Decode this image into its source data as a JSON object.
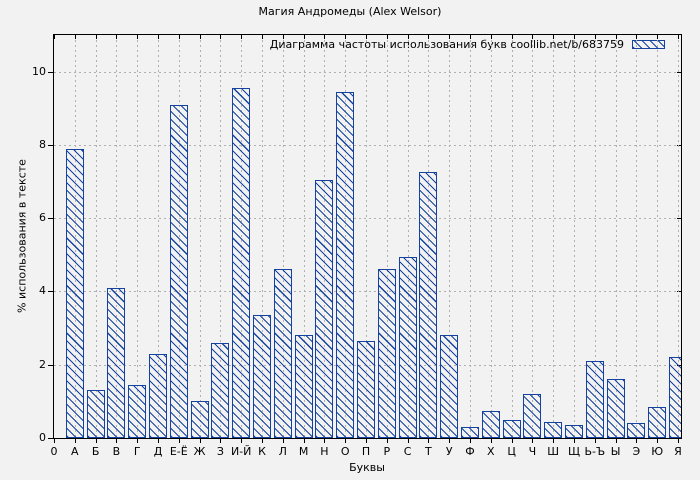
{
  "colors": {
    "bar": "#14429e",
    "grid": "#b0b0b0",
    "axis": "#000000",
    "background": "#f2f2f2",
    "text": "#000000"
  },
  "chart_data": {
    "type": "bar",
    "title": "Магия Андромеды (Alex Welsor)",
    "legend_label": "Диаграмма частоты использования букв coollib.net/b/683759",
    "xlabel": "Буквы",
    "ylabel": "% использования в тексте",
    "categories": [
      "0",
      "А",
      "Б",
      "В",
      "Г",
      "Д",
      "Е-Ё",
      "Ж",
      "З",
      "И-Й",
      "К",
      "Л",
      "М",
      "Н",
      "О",
      "П",
      "Р",
      "С",
      "Т",
      "У",
      "Ф",
      "Х",
      "Ц",
      "Ч",
      "Ш",
      "Щ",
      "Ь-Ъ",
      "Ы",
      "Э",
      "Ю",
      "Я"
    ],
    "values": [
      0,
      7.9,
      1.3,
      4.1,
      1.45,
      2.3,
      9.1,
      1.0,
      2.6,
      9.55,
      3.35,
      4.6,
      2.8,
      7.05,
      9.45,
      2.65,
      4.6,
      4.95,
      7.25,
      2.8,
      0.3,
      0.75,
      0.5,
      1.2,
      0.45,
      0.35,
      2.1,
      1.6,
      0.4,
      0.85,
      2.2
    ],
    "ylim": [
      0,
      11
    ],
    "yticks": [
      0,
      2,
      4,
      6,
      8,
      10
    ],
    "grid": true,
    "legend_position": "top-right",
    "hatch": "diagonal-down"
  }
}
